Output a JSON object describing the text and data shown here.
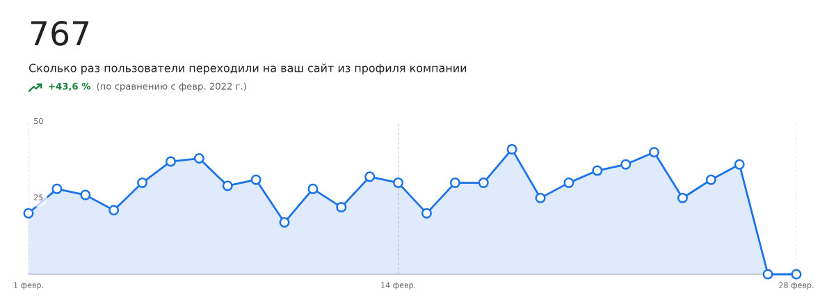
{
  "chart_data": {
    "type": "area",
    "title": "767",
    "subtitle": "Сколько раз пользователи переходили на ваш сайт из профиля компании",
    "annotations": [
      "+43,6 %",
      "(по сравнению с февр. 2022 г.)"
    ],
    "categories": [
      "1 февр.",
      null,
      null,
      null,
      null,
      null,
      null,
      null,
      null,
      null,
      null,
      null,
      null,
      "14 февр.",
      null,
      null,
      null,
      null,
      null,
      null,
      null,
      null,
      null,
      null,
      null,
      null,
      null,
      "28 февр."
    ],
    "series": [
      {
        "color": "#1a73e8",
        "values": [
          20,
          28,
          26,
          21,
          30,
          37,
          38,
          29,
          31,
          17,
          28,
          22,
          32,
          30,
          20,
          30,
          30,
          41,
          25,
          30,
          34,
          36,
          40,
          25,
          31,
          36,
          0,
          0
        ]
      }
    ],
    "ylim": [
      0,
      50
    ],
    "yticks": [
      25,
      50
    ],
    "grid": "x",
    "marker": "circle",
    "line_style": "solid",
    "legend": false
  }
}
